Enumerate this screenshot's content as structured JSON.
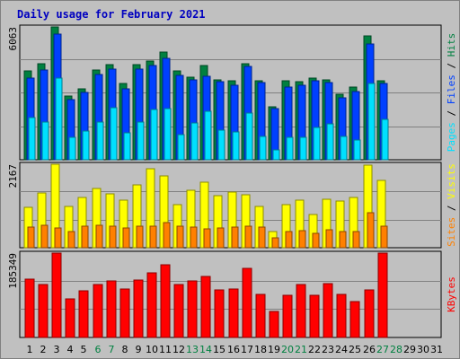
{
  "chart_data": {
    "type": "bar",
    "title": "Daily usage for February 2021",
    "categories": [
      "1",
      "2",
      "3",
      "4",
      "5",
      "6",
      "7",
      "8",
      "9",
      "10",
      "11",
      "12",
      "13",
      "14",
      "15",
      "16",
      "17",
      "18",
      "19",
      "20",
      "21",
      "22",
      "23",
      "24",
      "25",
      "26",
      "27",
      "28",
      "29",
      "30",
      "31"
    ],
    "weekend_days": [
      "6",
      "7",
      "13",
      "14",
      "20",
      "21",
      "27",
      "28"
    ],
    "panels": [
      {
        "name": "hits-files-pages",
        "max_label": "6063",
        "ymax": 6063,
        "legend": [
          "Pages",
          "Files",
          "Hits"
        ],
        "series": [
          {
            "name": "Hits",
            "color": "#008040",
            "values": [
              4050,
              4370,
              6063,
              2920,
              3240,
              4110,
              4350,
              3470,
              4350,
              4490,
              4920,
              4070,
              3770,
              4290,
              3640,
              3590,
              4390,
              3610,
              2400,
              3590,
              3580,
              3730,
              3650,
              3010,
              3300,
              5670,
              3600,
              0,
              0,
              0,
              0
            ]
          },
          {
            "name": "Files",
            "color": "#0040ff",
            "values": [
              3720,
              4110,
              5730,
              2760,
              3090,
              3880,
              4140,
              3230,
              4130,
              4310,
              4640,
              3850,
              3650,
              3810,
              3560,
              3400,
              4250,
              3510,
              2330,
              3330,
              3380,
              3590,
              3540,
              2830,
              3130,
              5300,
              3480,
              0,
              0,
              0,
              0
            ]
          },
          {
            "name": "Pages",
            "color": "#00e0ff",
            "values": [
              1940,
              1740,
              3740,
              1020,
              1300,
              1720,
              2360,
              1230,
              1730,
              2310,
              2340,
              1130,
              1670,
              2220,
              1360,
              1250,
              2130,
              1060,
              440,
              1030,
              1040,
              1460,
              1640,
              1070,
              906,
              3480,
              1840,
              0,
              0,
              0,
              0
            ]
          }
        ]
      },
      {
        "name": "visits-sites",
        "max_label": "2167",
        "ymax": 2167,
        "legend": [
          "Sites",
          "Visits"
        ],
        "series": [
          {
            "name": "Visits",
            "color": "#ffff00",
            "values": [
              1060,
              1410,
              2167,
              1070,
              1300,
              1530,
              1400,
              1230,
              1630,
              2050,
              1870,
              1110,
              1500,
              1700,
              1360,
              1440,
              1380,
              1070,
              430,
              1110,
              1230,
              860,
              1250,
              1210,
              1300,
              2150,
              1750,
              0,
              0,
              0,
              0
            ]
          },
          {
            "name": "Sites",
            "color": "#ff8000",
            "values": [
              540,
              590,
              520,
              430,
              550,
              580,
              560,
              520,
              560,
              560,
              650,
              560,
              540,
              480,
              510,
              540,
              560,
              540,
              250,
              430,
              440,
              380,
              460,
              420,
              410,
              920,
              560,
              0,
              0,
              0,
              0
            ]
          }
        ]
      },
      {
        "name": "kbytes",
        "max_label": "185349",
        "ymax": 185349,
        "legend": [
          "KBytes"
        ],
        "series": [
          {
            "name": "KBytes",
            "color": "#ff0000",
            "values": [
              128000,
              117000,
              185349,
              85000,
              103000,
              116000,
              125000,
              106000,
              126000,
              142000,
              160000,
              116000,
              125000,
              134000,
              104000,
              106000,
              151000,
              94000,
              58000,
              93000,
              117000,
              92000,
              118000,
              95000,
              79000,
              105000,
              185349,
              0,
              0,
              0,
              0
            ]
          }
        ]
      }
    ]
  }
}
